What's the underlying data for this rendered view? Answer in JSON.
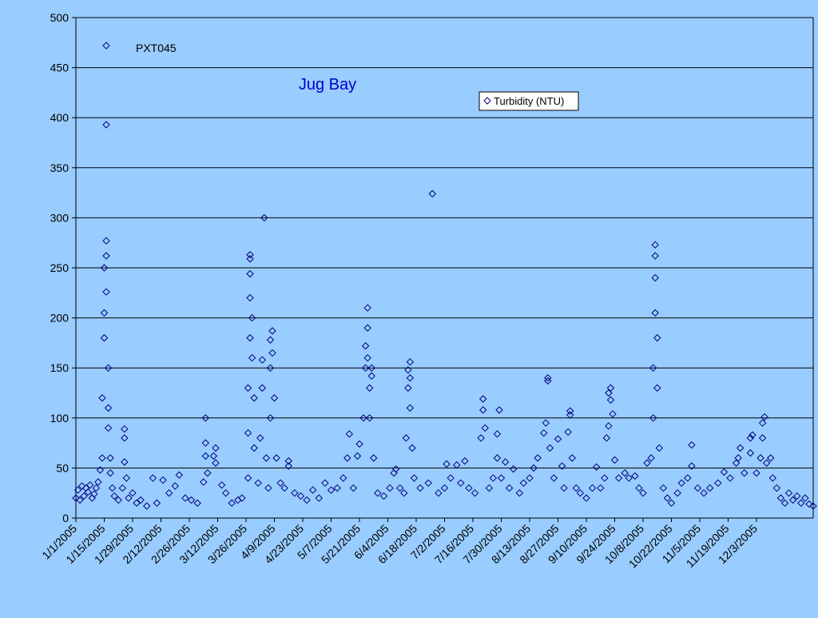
{
  "chart_data": {
    "type": "scatter",
    "title": "Jug Bay",
    "station_label": "PXT045",
    "xlabel": "",
    "ylabel": "",
    "ylim": [
      0,
      500
    ],
    "yticks": [
      0,
      50,
      100,
      150,
      200,
      250,
      300,
      350,
      400,
      450,
      500
    ],
    "xlim": [
      "2005-01-01",
      "2005-12-31"
    ],
    "xtick_labels": [
      "1/1/2005",
      "1/15/2005",
      "1/29/2005",
      "2/12/2005",
      "2/26/2005",
      "3/12/2005",
      "3/26/2005",
      "4/9/2005",
      "4/23/2005",
      "5/7/2005",
      "5/21/2005",
      "6/4/2005",
      "6/18/2005",
      "7/2/2005",
      "7/16/2005",
      "7/30/2005",
      "8/13/2005",
      "8/27/2005",
      "9/10/2005",
      "9/24/2005",
      "10/8/2005",
      "10/22/2005",
      "11/5/2005",
      "11/19/2005",
      "12/3/2005"
    ],
    "grid": true,
    "legend_placement": "top-right",
    "marker": "diamond-open",
    "colors": {
      "series": "#000080",
      "title": "#0000cc",
      "background": "#99ccff",
      "grid": "#000000"
    },
    "series": [
      {
        "name": "Turbidity (NTU)",
        "points": [
          [
            "2005-01-01",
            20
          ],
          [
            "2005-01-02",
            28
          ],
          [
            "2005-01-03",
            18
          ],
          [
            "2005-01-04",
            32
          ],
          [
            "2005-01-05",
            22
          ],
          [
            "2005-01-06",
            30
          ],
          [
            "2005-01-07",
            26
          ],
          [
            "2005-01-08",
            33
          ],
          [
            "2005-01-09",
            20
          ],
          [
            "2005-01-10",
            24
          ],
          [
            "2005-01-11",
            30
          ],
          [
            "2005-01-12",
            36
          ],
          [
            "2005-01-13",
            48
          ],
          [
            "2005-01-14",
            60
          ],
          [
            "2005-01-14",
            120
          ],
          [
            "2005-01-15",
            180
          ],
          [
            "2005-01-15",
            250
          ],
          [
            "2005-01-15",
            205
          ],
          [
            "2005-01-16",
            277
          ],
          [
            "2005-01-16",
            262
          ],
          [
            "2005-01-16",
            393
          ],
          [
            "2005-01-16",
            472
          ],
          [
            "2005-01-16",
            226
          ],
          [
            "2005-01-17",
            150
          ],
          [
            "2005-01-17",
            110
          ],
          [
            "2005-01-17",
            90
          ],
          [
            "2005-01-18",
            60
          ],
          [
            "2005-01-18",
            45
          ],
          [
            "2005-01-19",
            30
          ],
          [
            "2005-01-20",
            22
          ],
          [
            "2005-01-22",
            18
          ],
          [
            "2005-01-24",
            30
          ],
          [
            "2005-01-25",
            56
          ],
          [
            "2005-01-25",
            80
          ],
          [
            "2005-01-25",
            89
          ],
          [
            "2005-01-26",
            40
          ],
          [
            "2005-01-27",
            20
          ],
          [
            "2005-01-29",
            25
          ],
          [
            "2005-01-31",
            15
          ],
          [
            "2005-02-02",
            18
          ],
          [
            "2005-02-05",
            12
          ],
          [
            "2005-02-08",
            40
          ],
          [
            "2005-02-10",
            15
          ],
          [
            "2005-02-13",
            38
          ],
          [
            "2005-02-16",
            25
          ],
          [
            "2005-02-19",
            32
          ],
          [
            "2005-02-21",
            43
          ],
          [
            "2005-02-24",
            20
          ],
          [
            "2005-02-27",
            18
          ],
          [
            "2005-03-02",
            15
          ],
          [
            "2005-03-05",
            36
          ],
          [
            "2005-03-06",
            62
          ],
          [
            "2005-03-06",
            75
          ],
          [
            "2005-03-06",
            100
          ],
          [
            "2005-03-07",
            45
          ],
          [
            "2005-03-10",
            62
          ],
          [
            "2005-03-11",
            70
          ],
          [
            "2005-03-11",
            55
          ],
          [
            "2005-03-14",
            33
          ],
          [
            "2005-03-16",
            25
          ],
          [
            "2005-03-19",
            15
          ],
          [
            "2005-03-22",
            18
          ],
          [
            "2005-03-24",
            20
          ],
          [
            "2005-03-27",
            40
          ],
          [
            "2005-03-27",
            85
          ],
          [
            "2005-03-27",
            130
          ],
          [
            "2005-03-28",
            180
          ],
          [
            "2005-03-28",
            220
          ],
          [
            "2005-03-28",
            244
          ],
          [
            "2005-03-28",
            259
          ],
          [
            "2005-03-28",
            263
          ],
          [
            "2005-03-29",
            200
          ],
          [
            "2005-03-29",
            160
          ],
          [
            "2005-03-30",
            120
          ],
          [
            "2005-03-30",
            70
          ],
          [
            "2005-04-01",
            35
          ],
          [
            "2005-04-02",
            80
          ],
          [
            "2005-04-03",
            130
          ],
          [
            "2005-04-03",
            158
          ],
          [
            "2005-04-04",
            300
          ],
          [
            "2005-04-05",
            60
          ],
          [
            "2005-04-06",
            30
          ],
          [
            "2005-04-07",
            100
          ],
          [
            "2005-04-07",
            150
          ],
          [
            "2005-04-07",
            178
          ],
          [
            "2005-04-08",
            187
          ],
          [
            "2005-04-08",
            165
          ],
          [
            "2005-04-09",
            120
          ],
          [
            "2005-04-10",
            60
          ],
          [
            "2005-04-12",
            35
          ],
          [
            "2005-04-14",
            30
          ],
          [
            "2005-04-16",
            52
          ],
          [
            "2005-04-16",
            57
          ],
          [
            "2005-04-19",
            25
          ],
          [
            "2005-04-22",
            22
          ],
          [
            "2005-04-25",
            18
          ],
          [
            "2005-04-28",
            28
          ],
          [
            "2005-05-01",
            20
          ],
          [
            "2005-05-04",
            35
          ],
          [
            "2005-05-07",
            28
          ],
          [
            "2005-05-10",
            30
          ],
          [
            "2005-05-13",
            40
          ],
          [
            "2005-05-15",
            60
          ],
          [
            "2005-05-16",
            84
          ],
          [
            "2005-05-18",
            30
          ],
          [
            "2005-05-20",
            62
          ],
          [
            "2005-05-21",
            74
          ],
          [
            "2005-05-23",
            100
          ],
          [
            "2005-05-24",
            150
          ],
          [
            "2005-05-24",
            172
          ],
          [
            "2005-05-25",
            190
          ],
          [
            "2005-05-25",
            210
          ],
          [
            "2005-05-25",
            160
          ],
          [
            "2005-05-26",
            130
          ],
          [
            "2005-05-26",
            100
          ],
          [
            "2005-05-27",
            150
          ],
          [
            "2005-05-27",
            142
          ],
          [
            "2005-05-28",
            60
          ],
          [
            "2005-05-30",
            25
          ],
          [
            "2005-06-02",
            22
          ],
          [
            "2005-06-05",
            30
          ],
          [
            "2005-06-07",
            45
          ],
          [
            "2005-06-08",
            49
          ],
          [
            "2005-06-10",
            30
          ],
          [
            "2005-06-12",
            25
          ],
          [
            "2005-06-13",
            80
          ],
          [
            "2005-06-14",
            130
          ],
          [
            "2005-06-14",
            148
          ],
          [
            "2005-06-15",
            156
          ],
          [
            "2005-06-15",
            140
          ],
          [
            "2005-06-15",
            110
          ],
          [
            "2005-06-16",
            70
          ],
          [
            "2005-06-17",
            40
          ],
          [
            "2005-06-20",
            30
          ],
          [
            "2005-06-24",
            35
          ],
          [
            "2005-06-26",
            324
          ],
          [
            "2005-06-29",
            25
          ],
          [
            "2005-07-02",
            30
          ],
          [
            "2005-07-03",
            54
          ],
          [
            "2005-07-05",
            40
          ],
          [
            "2005-07-08",
            53
          ],
          [
            "2005-07-10",
            35
          ],
          [
            "2005-07-12",
            57
          ],
          [
            "2005-07-14",
            30
          ],
          [
            "2005-07-17",
            25
          ],
          [
            "2005-07-20",
            80
          ],
          [
            "2005-07-21",
            108
          ],
          [
            "2005-07-21",
            119
          ],
          [
            "2005-07-22",
            90
          ],
          [
            "2005-07-24",
            30
          ],
          [
            "2005-07-26",
            40
          ],
          [
            "2005-07-28",
            60
          ],
          [
            "2005-07-28",
            84
          ],
          [
            "2005-07-29",
            108
          ],
          [
            "2005-07-30",
            40
          ],
          [
            "2005-08-01",
            56
          ],
          [
            "2005-08-03",
            30
          ],
          [
            "2005-08-05",
            49
          ],
          [
            "2005-08-08",
            25
          ],
          [
            "2005-08-10",
            35
          ],
          [
            "2005-08-13",
            40
          ],
          [
            "2005-08-15",
            50
          ],
          [
            "2005-08-17",
            60
          ],
          [
            "2005-08-20",
            85
          ],
          [
            "2005-08-21",
            95
          ],
          [
            "2005-08-22",
            137
          ],
          [
            "2005-08-22",
            140
          ],
          [
            "2005-08-23",
            70
          ],
          [
            "2005-08-25",
            40
          ],
          [
            "2005-08-27",
            79
          ],
          [
            "2005-08-29",
            52
          ],
          [
            "2005-08-30",
            30
          ],
          [
            "2005-09-01",
            86
          ],
          [
            "2005-09-02",
            107
          ],
          [
            "2005-09-02",
            103
          ],
          [
            "2005-09-03",
            60
          ],
          [
            "2005-09-05",
            30
          ],
          [
            "2005-09-07",
            25
          ],
          [
            "2005-09-10",
            20
          ],
          [
            "2005-09-13",
            30
          ],
          [
            "2005-09-15",
            51
          ],
          [
            "2005-09-17",
            30
          ],
          [
            "2005-09-19",
            40
          ],
          [
            "2005-09-20",
            80
          ],
          [
            "2005-09-21",
            92
          ],
          [
            "2005-09-21",
            125
          ],
          [
            "2005-09-22",
            130
          ],
          [
            "2005-09-22",
            118
          ],
          [
            "2005-09-23",
            104
          ],
          [
            "2005-09-24",
            58
          ],
          [
            "2005-09-26",
            40
          ],
          [
            "2005-09-29",
            45
          ],
          [
            "2005-10-01",
            40
          ],
          [
            "2005-10-04",
            42
          ],
          [
            "2005-10-06",
            30
          ],
          [
            "2005-10-08",
            25
          ],
          [
            "2005-10-10",
            55
          ],
          [
            "2005-10-12",
            60
          ],
          [
            "2005-10-13",
            100
          ],
          [
            "2005-10-13",
            150
          ],
          [
            "2005-10-14",
            205
          ],
          [
            "2005-10-14",
            240
          ],
          [
            "2005-10-14",
            262
          ],
          [
            "2005-10-14",
            273
          ],
          [
            "2005-10-15",
            180
          ],
          [
            "2005-10-15",
            130
          ],
          [
            "2005-10-16",
            70
          ],
          [
            "2005-10-18",
            30
          ],
          [
            "2005-10-20",
            20
          ],
          [
            "2005-10-22",
            15
          ],
          [
            "2005-10-25",
            25
          ],
          [
            "2005-10-27",
            35
          ],
          [
            "2005-10-30",
            40
          ],
          [
            "2005-11-01",
            52
          ],
          [
            "2005-11-01",
            73
          ],
          [
            "2005-11-04",
            30
          ],
          [
            "2005-11-07",
            25
          ],
          [
            "2005-11-10",
            30
          ],
          [
            "2005-11-14",
            35
          ],
          [
            "2005-11-17",
            46
          ],
          [
            "2005-11-20",
            40
          ],
          [
            "2005-11-23",
            55
          ],
          [
            "2005-11-24",
            60
          ],
          [
            "2005-11-25",
            70
          ],
          [
            "2005-11-27",
            45
          ],
          [
            "2005-11-30",
            65
          ],
          [
            "2005-11-30",
            80
          ],
          [
            "2005-12-01",
            83
          ],
          [
            "2005-12-03",
            45
          ],
          [
            "2005-12-05",
            60
          ],
          [
            "2005-12-06",
            80
          ],
          [
            "2005-12-06",
            95
          ],
          [
            "2005-12-07",
            101
          ],
          [
            "2005-12-08",
            55
          ],
          [
            "2005-12-10",
            60
          ],
          [
            "2005-12-11",
            40
          ],
          [
            "2005-12-13",
            30
          ],
          [
            "2005-12-15",
            20
          ],
          [
            "2005-12-17",
            15
          ],
          [
            "2005-12-19",
            25
          ],
          [
            "2005-12-21",
            18
          ],
          [
            "2005-12-23",
            22
          ],
          [
            "2005-12-25",
            15
          ],
          [
            "2005-12-27",
            20
          ],
          [
            "2005-12-29",
            14
          ],
          [
            "2005-12-31",
            12
          ]
        ]
      }
    ]
  }
}
